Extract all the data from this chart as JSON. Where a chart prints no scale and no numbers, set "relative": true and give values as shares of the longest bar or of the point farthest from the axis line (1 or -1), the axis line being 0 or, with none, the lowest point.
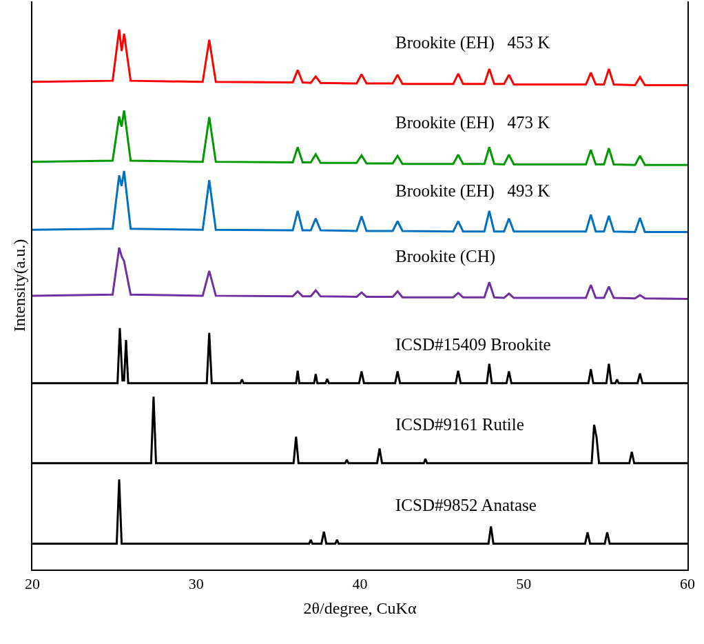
{
  "chart_data": {
    "type": "line",
    "relative": true,
    "xlabel": "2θ/degree, CuKα",
    "ylabel": "Intensity(a.u.)",
    "xlim": [
      20,
      60
    ],
    "xticks": [
      20,
      30,
      40,
      50,
      60
    ],
    "legend": false,
    "marker": "none",
    "line_style": "solid",
    "tick_labels": "x",
    "series": [
      {
        "name": "Brookite (EH)   453 K",
        "color": "#ff0000",
        "x": [
          20,
          24.9,
          25.3,
          25.45,
          25.6,
          26.0,
          30.4,
          30.8,
          31.2,
          35.9,
          36.2,
          36.5,
          37.0,
          37.3,
          37.6,
          39.8,
          40.1,
          40.4,
          42.0,
          42.3,
          42.6,
          45.7,
          46.0,
          46.3,
          47.6,
          47.9,
          48.2,
          48.8,
          49.1,
          49.4,
          53.8,
          54.1,
          54.4,
          54.9,
          55.2,
          55.5,
          56.8,
          57.1,
          57.4,
          60
        ],
        "values": [
          0.903,
          0.905,
          1.0,
          0.96,
          0.992,
          0.905,
          0.903,
          0.981,
          0.903,
          0.902,
          0.925,
          0.902,
          0.901,
          0.913,
          0.901,
          0.9,
          0.917,
          0.9,
          0.9,
          0.916,
          0.899,
          0.899,
          0.918,
          0.899,
          0.899,
          0.927,
          0.899,
          0.899,
          0.916,
          0.898,
          0.898,
          0.92,
          0.898,
          0.898,
          0.927,
          0.898,
          0.897,
          0.912,
          0.897,
          0.897
        ]
      },
      {
        "name": "Brookite (EH)   473 K",
        "color": "#009900",
        "x": [
          20,
          24.9,
          25.3,
          25.45,
          25.6,
          26.0,
          30.4,
          30.8,
          31.2,
          35.9,
          36.2,
          36.5,
          37.0,
          37.3,
          37.6,
          39.8,
          40.1,
          40.4,
          42.0,
          42.3,
          42.6,
          45.7,
          46.0,
          46.3,
          47.6,
          47.9,
          48.2,
          48.8,
          49.1,
          49.4,
          53.8,
          54.1,
          54.4,
          54.9,
          55.2,
          55.5,
          56.8,
          57.1,
          57.4,
          60
        ],
        "values": [
          0.755,
          0.757,
          0.839,
          0.82,
          0.85,
          0.757,
          0.755,
          0.838,
          0.755,
          0.754,
          0.782,
          0.754,
          0.754,
          0.769,
          0.753,
          0.753,
          0.767,
          0.752,
          0.752,
          0.766,
          0.751,
          0.751,
          0.768,
          0.751,
          0.751,
          0.782,
          0.751,
          0.75,
          0.768,
          0.75,
          0.75,
          0.777,
          0.75,
          0.75,
          0.78,
          0.75,
          0.749,
          0.766,
          0.749,
          0.749
        ]
      },
      {
        "name": "Brookite (EH)   493 K",
        "color": "#0070c0",
        "x": [
          20,
          24.9,
          25.3,
          25.45,
          25.6,
          26.0,
          30.4,
          30.8,
          31.2,
          35.9,
          36.2,
          36.5,
          37.0,
          37.3,
          37.6,
          39.8,
          40.1,
          40.4,
          42.0,
          42.3,
          42.6,
          45.7,
          46.0,
          46.3,
          47.6,
          47.9,
          48.2,
          48.8,
          49.1,
          49.4,
          53.8,
          54.1,
          54.4,
          54.9,
          55.2,
          55.5,
          56.8,
          57.1,
          57.4,
          60
        ],
        "values": [
          0.629,
          0.631,
          0.73,
          0.71,
          0.738,
          0.631,
          0.629,
          0.721,
          0.629,
          0.628,
          0.664,
          0.628,
          0.628,
          0.65,
          0.628,
          0.627,
          0.654,
          0.627,
          0.627,
          0.645,
          0.627,
          0.626,
          0.645,
          0.626,
          0.626,
          0.664,
          0.626,
          0.626,
          0.65,
          0.626,
          0.626,
          0.657,
          0.626,
          0.626,
          0.655,
          0.626,
          0.625,
          0.651,
          0.625,
          0.625
        ]
      },
      {
        "name": "Brookite (CH)",
        "color": "#7030a0",
        "x": [
          20,
          24.9,
          25.3,
          25.45,
          25.6,
          26.0,
          30.4,
          30.8,
          31.2,
          35.9,
          36.2,
          36.5,
          37.0,
          37.3,
          37.6,
          39.8,
          40.1,
          40.4,
          42.0,
          42.3,
          42.6,
          45.7,
          46.0,
          46.3,
          47.6,
          47.9,
          48.2,
          48.8,
          49.1,
          49.4,
          53.8,
          54.1,
          54.4,
          54.9,
          55.2,
          55.5,
          56.8,
          57.1,
          57.4,
          60
        ],
        "values": [
          0.507,
          0.509,
          0.596,
          0.58,
          0.571,
          0.509,
          0.507,
          0.553,
          0.507,
          0.506,
          0.515,
          0.506,
          0.506,
          0.517,
          0.506,
          0.505,
          0.513,
          0.505,
          0.505,
          0.515,
          0.504,
          0.504,
          0.512,
          0.504,
          0.504,
          0.532,
          0.504,
          0.503,
          0.511,
          0.503,
          0.503,
          0.527,
          0.503,
          0.503,
          0.524,
          0.503,
          0.502,
          0.508,
          0.502,
          0.501
        ]
      },
      {
        "name": "ICSD#15409 Brookite",
        "color": "#000000",
        "x": [
          20,
          25.2,
          25.34,
          25.5,
          25.6,
          25.72,
          25.85,
          30.65,
          30.8,
          30.95,
          32.7,
          32.8,
          32.9,
          36.1,
          36.2,
          36.3,
          37.2,
          37.3,
          37.4,
          37.9,
          38.0,
          38.1,
          39.95,
          40.1,
          40.25,
          42.15,
          42.3,
          42.45,
          45.85,
          46.0,
          46.15,
          47.75,
          47.9,
          48.05,
          48.95,
          49.1,
          49.25,
          53.95,
          54.1,
          54.25,
          55.05,
          55.2,
          55.35,
          55.6,
          55.7,
          55.8,
          56.95,
          57.1,
          57.25,
          60
        ],
        "values": [
          0.345,
          0.345,
          0.447,
          0.35,
          0.35,
          0.425,
          0.345,
          0.345,
          0.438,
          0.345,
          0.345,
          0.352,
          0.345,
          0.345,
          0.368,
          0.345,
          0.345,
          0.362,
          0.345,
          0.345,
          0.353,
          0.345,
          0.345,
          0.367,
          0.345,
          0.345,
          0.367,
          0.345,
          0.345,
          0.368,
          0.345,
          0.345,
          0.381,
          0.345,
          0.345,
          0.367,
          0.345,
          0.345,
          0.371,
          0.345,
          0.345,
          0.381,
          0.345,
          0.345,
          0.352,
          0.345,
          0.345,
          0.363,
          0.345,
          0.345
        ]
      },
      {
        "name": "ICSD#9161 Rutile",
        "color": "#000000",
        "x": [
          20,
          27.25,
          27.4,
          27.55,
          35.95,
          36.1,
          36.25,
          39.1,
          39.2,
          39.3,
          41.05,
          41.2,
          41.35,
          43.9,
          44.0,
          44.1,
          54.15,
          54.3,
          54.45,
          54.6,
          56.45,
          56.6,
          56.75,
          60
        ],
        "values": [
          0.197,
          0.197,
          0.32,
          0.197,
          0.197,
          0.246,
          0.197,
          0.197,
          0.203,
          0.197,
          0.197,
          0.224,
          0.197,
          0.197,
          0.205,
          0.197,
          0.197,
          0.268,
          0.245,
          0.197,
          0.197,
          0.218,
          0.197,
          0.197
        ]
      },
      {
        "name": "ICSD#9852 Anatase",
        "color": "#000000",
        "x": [
          20,
          25.15,
          25.3,
          25.45,
          36.9,
          37.0,
          37.1,
          37.65,
          37.8,
          37.95,
          38.5,
          38.6,
          38.7,
          47.85,
          48.0,
          48.15,
          53.75,
          53.9,
          54.05,
          54.95,
          55.1,
          55.25,
          60
        ],
        "values": [
          0.048,
          0.048,
          0.167,
          0.048,
          0.048,
          0.055,
          0.048,
          0.048,
          0.07,
          0.048,
          0.048,
          0.055,
          0.048,
          0.048,
          0.08,
          0.048,
          0.048,
          0.069,
          0.048,
          0.048,
          0.069,
          0.048,
          0.048
        ]
      }
    ]
  }
}
